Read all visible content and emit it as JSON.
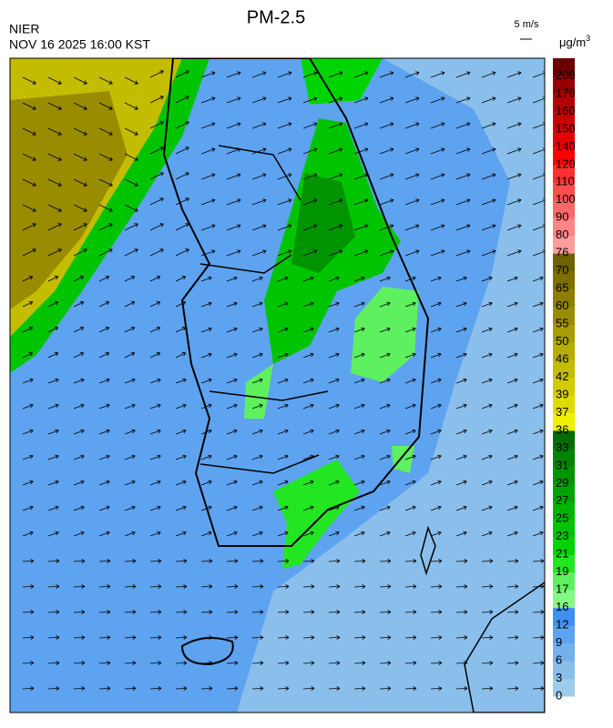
{
  "header": {
    "title": "PM-2.5",
    "agency": "NIER",
    "datetime": "NOV 16 2025 16:00 KST",
    "wind_scale": "5 m/s",
    "unit": "μg/m",
    "unit_exponent": "3"
  },
  "colorbar": {
    "labels": [
      0,
      3,
      6,
      9,
      12,
      16,
      17,
      19,
      21,
      23,
      25,
      27,
      29,
      31,
      33,
      36,
      37,
      39,
      42,
      46,
      50,
      55,
      60,
      65,
      70,
      76,
      80,
      90,
      100,
      110,
      120,
      140,
      150,
      160,
      170,
      200
    ],
    "colors": [
      "#9fcbea",
      "#8abfec",
      "#74b0ee",
      "#5ea3f0",
      "#3f90f2",
      "#86f886",
      "#5ef05e",
      "#22e622",
      "#00d400",
      "#00c400",
      "#00b400",
      "#00a400",
      "#009400",
      "#008400",
      "#006e00",
      "#f0f000",
      "#e0dc00",
      "#d2cc00",
      "#c4bc00",
      "#b6ac00",
      "#a89c00",
      "#9a8c00",
      "#8c7e00",
      "#7e7000",
      "#6e6200",
      "#ff9c9c",
      "#ff8484",
      "#ff6868",
      "#ff4c4c",
      "#ff3030",
      "#ff0000",
      "#e40000",
      "#cc0000",
      "#b40000",
      "#980000",
      "#6c0000"
    ]
  }
}
